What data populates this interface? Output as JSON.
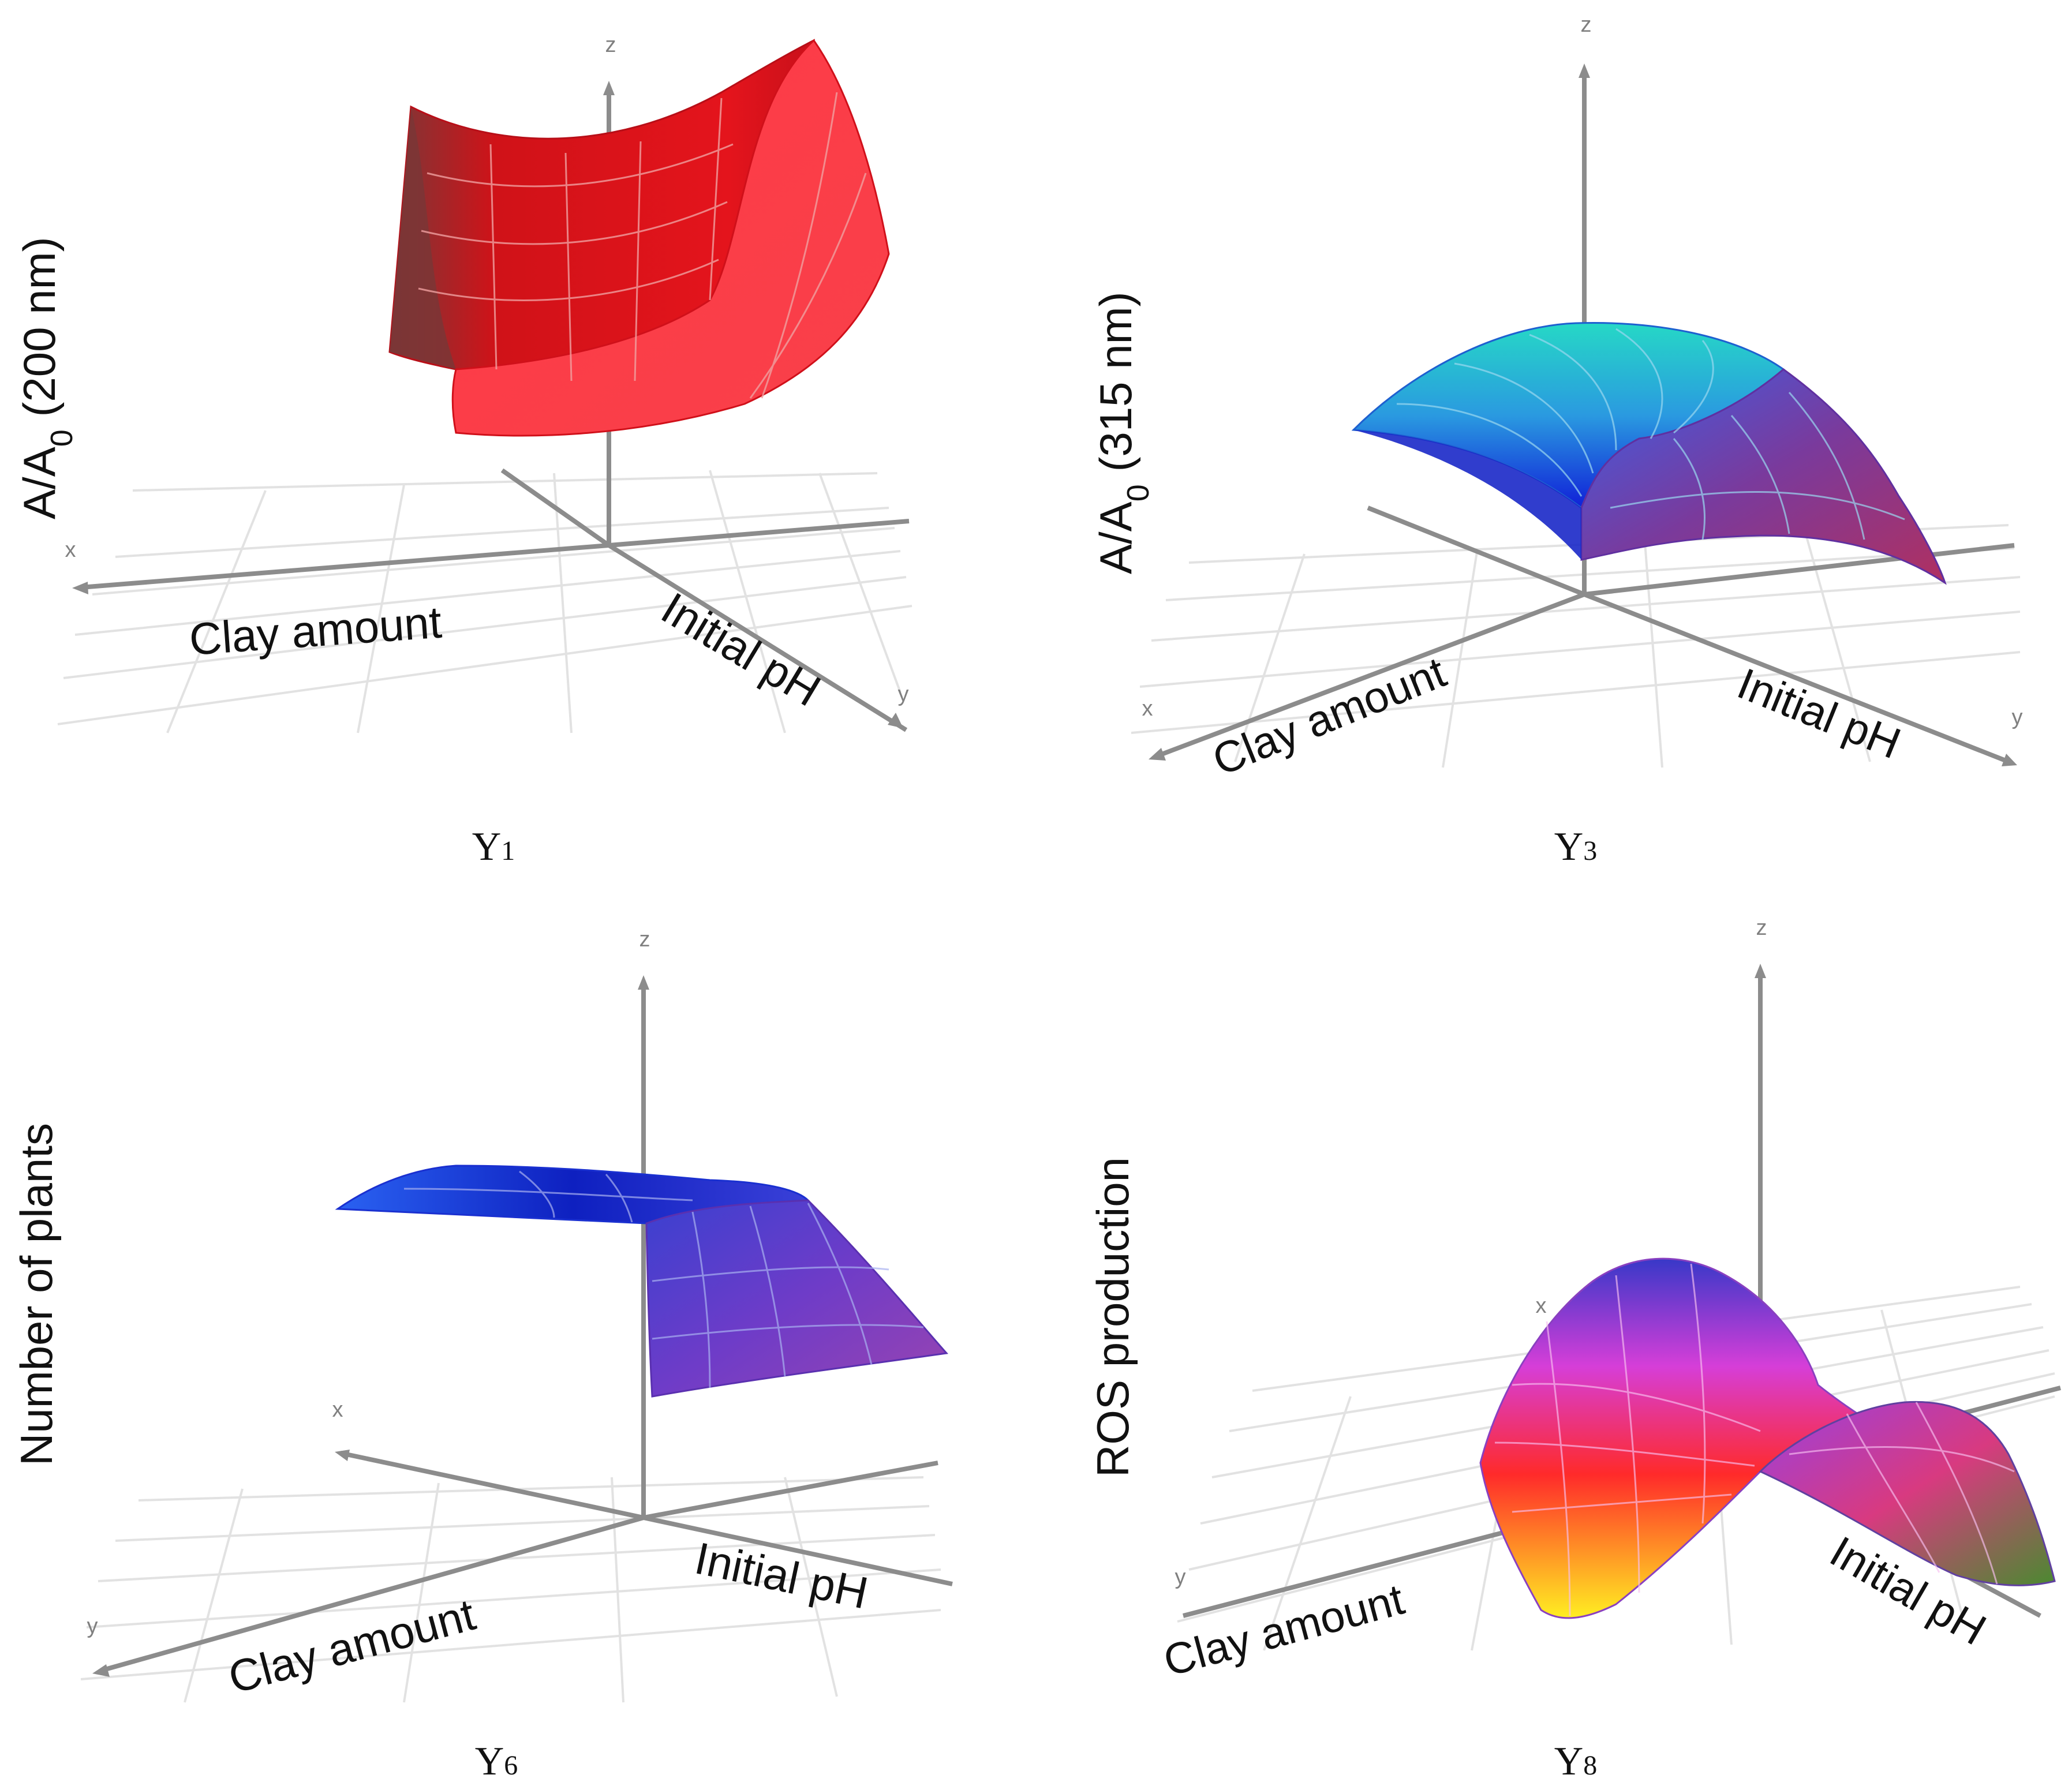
{
  "chart_data": [
    {
      "type": "surface",
      "caption": "Y",
      "caption_sub": "1",
      "zlabel": "A/A",
      "zlabel_sub": "0",
      "zlabel_suffix": " (200 nm)",
      "xlabel": "Clay amount",
      "ylabel": "Initial pH",
      "axis_letters": {
        "x": "x",
        "y": "y",
        "z": "z"
      },
      "shape": "saddle",
      "color": "#e8141c"
    },
    {
      "type": "surface",
      "caption": "Y",
      "caption_sub": "3",
      "zlabel": "A/A",
      "zlabel_sub": "0",
      "zlabel_suffix": " (315 nm)",
      "xlabel": "Clay amount",
      "ylabel": "Initial pH",
      "axis_letters": {
        "x": "x",
        "y": "y",
        "z": "z"
      },
      "shape": "dome",
      "colors": [
        "#22d0c8",
        "#1b35e0",
        "#7a3a9a",
        "#a83060"
      ]
    },
    {
      "type": "surface",
      "caption": "Y",
      "caption_sub": "6",
      "zlabel": "Number of plants",
      "zlabel_sub": "",
      "zlabel_suffix": "",
      "xlabel": "Clay amount",
      "ylabel": "Initial pH",
      "axis_letters": {
        "x": "x",
        "y": "y",
        "z": "z"
      },
      "shape": "ridge",
      "colors": [
        "#2a60f0",
        "#1020c0",
        "#6e3cc8",
        "#9040b0"
      ]
    },
    {
      "type": "surface",
      "caption": "Y",
      "caption_sub": "8",
      "zlabel": "ROS production",
      "zlabel_sub": "",
      "zlabel_suffix": "",
      "xlabel": "Clay amount",
      "ylabel": "Initial pH",
      "axis_letters": {
        "x": "x",
        "y": "y",
        "z": "z"
      },
      "shape": "saddle-colored",
      "colors": [
        "#3a3ad0",
        "#e040d0",
        "#ff2020",
        "#ffee20",
        "#4a8a30"
      ]
    }
  ]
}
